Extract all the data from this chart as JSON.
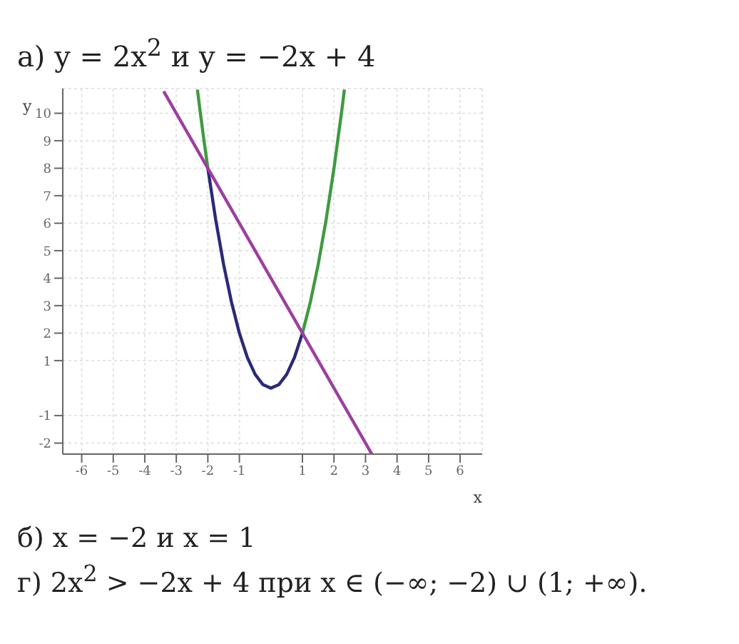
{
  "chart_data": {
    "type": "line",
    "title": "а) y = 2x$^{2}$   и   y = −2x + 4",
    "xlabel": "x",
    "ylabel": "y",
    "series": [
      {
        "color": "#3f9a3f",
        "x": [
          -2.33,
          -2.25,
          -2.125,
          -2
        ],
        "values": [
          10.86,
          10.125,
          9.03,
          8
        ]
      },
      {
        "color": "#2a2a78",
        "x": [
          -2,
          -1.75,
          -1.5,
          -1.25,
          -1,
          -0.75,
          -0.5,
          -0.25,
          0,
          0.25,
          0.5,
          0.75,
          1
        ],
        "values": [
          8,
          6.125,
          4.5,
          3.125,
          2,
          1.125,
          0.5,
          0.125,
          0,
          0.125,
          0.5,
          1.125,
          2
        ]
      },
      {
        "color": "#3f9a3f",
        "x": [
          1,
          1.25,
          1.5,
          1.75,
          2,
          2.25,
          2.33
        ],
        "values": [
          2,
          3.125,
          4.5,
          6.125,
          8,
          10.125,
          10.86
        ]
      },
      {
        "color": "#9b3fa0",
        "x": [
          -3.4,
          3.2
        ],
        "values": [
          10.8,
          -2.4
        ]
      }
    ],
    "xlim": [
      -6.6,
      6.7
    ],
    "ylim": [
      -2.4,
      10.9
    ],
    "xticks": [
      -6,
      -5,
      -4,
      -3,
      -2,
      -1,
      1,
      2,
      3,
      4,
      5,
      6
    ],
    "yticks": [
      -2,
      -1,
      1,
      2,
      3,
      4,
      5,
      6,
      7,
      8,
      9,
      10
    ],
    "grid": true,
    "legend": false,
    "marker": "none",
    "line_style": "solid",
    "annotations": [
      "б) x = −2   и   x = 1",
      "г) 2x$^{2}$ > −2x + 4  при  x ∈ (−∞; −2) ∪ (1; +∞)."
    ]
  }
}
